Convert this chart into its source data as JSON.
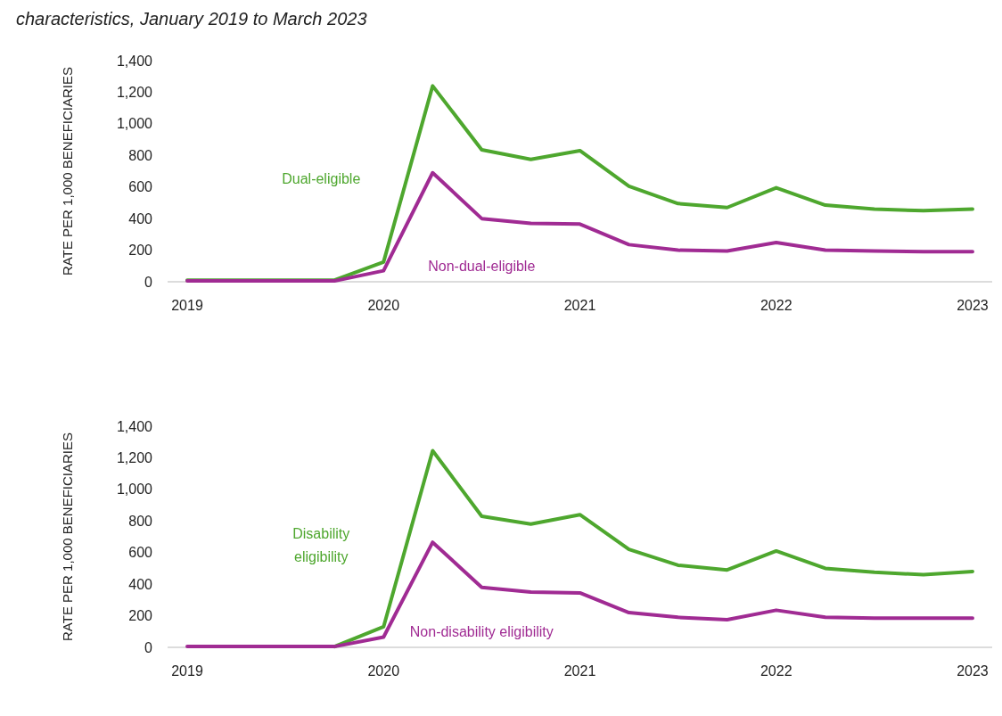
{
  "chart_data": [
    {
      "type": "line",
      "subtitle": "characteristics, January 2019 to March 2023",
      "ylabel": "RATE PER 1,000 BENEFICIARIES",
      "x": [
        2019,
        2019.25,
        2019.5,
        2019.75,
        2020,
        2020.25,
        2020.5,
        2020.75,
        2021,
        2021.25,
        2021.5,
        2021.75,
        2022,
        2022.25,
        2022.5,
        2022.75,
        2023
      ],
      "series": [
        {
          "name": "Dual-eligible",
          "color": "#4ea72e",
          "values": [
            10,
            10,
            10,
            10,
            125,
            1240,
            835,
            775,
            830,
            605,
            495,
            470,
            595,
            485,
            460,
            450,
            460
          ]
        },
        {
          "name": "Non-dual-eligible",
          "color": "#a02b93",
          "values": [
            5,
            5,
            5,
            5,
            70,
            690,
            400,
            370,
            365,
            235,
            200,
            195,
            248,
            200,
            195,
            190,
            190
          ]
        }
      ],
      "xlim": [
        2018.9,
        2023.1
      ],
      "xticks": [
        2019,
        2020,
        2021,
        2022,
        2023
      ],
      "ylim": [
        0,
        1400
      ],
      "yticks": [
        0,
        200,
        400,
        600,
        800,
        {
          "value": 1000,
          "label": "1,000"
        },
        {
          "value": 1200,
          "label": "1,200"
        },
        {
          "value": 1400,
          "label": "1,400"
        }
      ],
      "grid": false,
      "marker": "none",
      "line_style": "solid"
    },
    {
      "type": "line",
      "ylabel": "RATE PER 1,000 BENEFICIARIES",
      "x": [
        2019,
        2019.25,
        2019.5,
        2019.75,
        2020,
        2020.25,
        2020.5,
        2020.75,
        2021,
        2021.25,
        2021.5,
        2021.75,
        2022,
        2022.25,
        2022.5,
        2022.75,
        2023
      ],
      "series": [
        {
          "name": "Disability eligibility",
          "color": "#4ea72e",
          "values": [
            null,
            null,
            null,
            5,
            130,
            1245,
            830,
            780,
            840,
            620,
            520,
            490,
            610,
            500,
            475,
            460,
            480
          ]
        },
        {
          "name": "Non-disability eligibility",
          "color": "#a02b93",
          "values": [
            5,
            5,
            5,
            5,
            65,
            665,
            380,
            350,
            345,
            220,
            190,
            175,
            235,
            190,
            185,
            185,
            185
          ]
        }
      ],
      "xlim": [
        2018.9,
        2023.1
      ],
      "xticks": [
        2019,
        2020,
        2021,
        2022,
        2023
      ],
      "ylim": [
        0,
        1400
      ],
      "yticks": [
        0,
        200,
        400,
        600,
        800,
        {
          "value": 1000,
          "label": "1,000"
        },
        {
          "value": 1200,
          "label": "1,200"
        },
        {
          "value": 1400,
          "label": "1,400"
        }
      ],
      "grid": false,
      "marker": "none",
      "line_style": "solid"
    }
  ]
}
